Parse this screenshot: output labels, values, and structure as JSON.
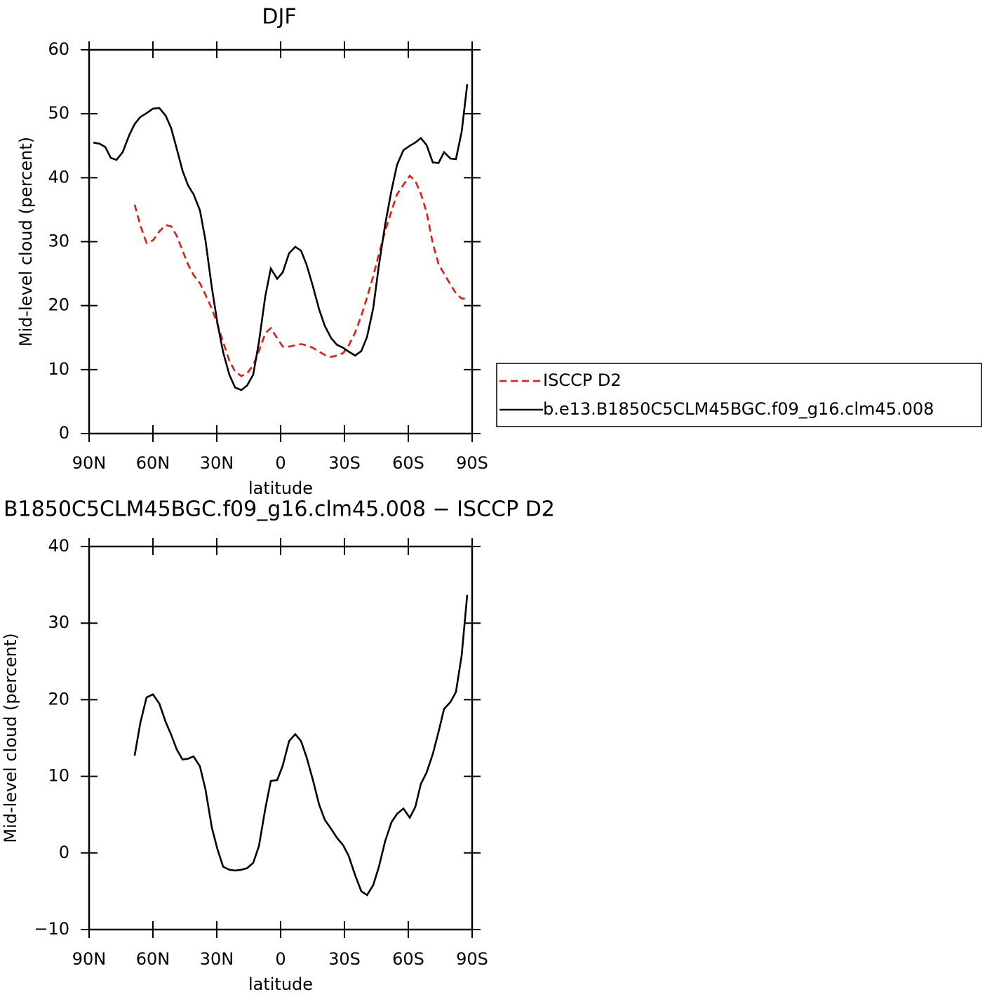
{
  "chart_data": [
    {
      "type": "line",
      "title": "DJF",
      "xlabel": "latitude",
      "ylabel": "Mid-level cloud (percent)",
      "x": [
        88,
        85,
        82.4,
        79.8,
        77.1,
        74.2,
        71.2,
        68.6,
        65.9,
        63,
        60,
        57,
        54,
        51.4,
        48.8,
        46.1,
        43.5,
        40.9,
        37.9,
        35.3,
        32.3,
        29.7,
        27,
        24.1,
        21.4,
        18.5,
        15.8,
        12.9,
        10.2,
        7.2,
        4.6,
        1.6,
        -1,
        -4,
        -6.9,
        -9.6,
        -12.2,
        -15.2,
        -18.1,
        -20.8,
        -23.8,
        -26.4,
        -29.4,
        -32,
        -35,
        -37.9,
        -40.6,
        -43.5,
        -46.2,
        -49.1,
        -52.1,
        -54.7,
        -57.7,
        -60.7,
        -63.3,
        -65.9,
        -68.6,
        -71.5,
        -74.2,
        -76.8,
        -79.8,
        -82.4,
        -85.1,
        -87.7
      ],
      "series": [
        {
          "name": "ISCCP D2",
          "color": "#e8190e",
          "linestyle": "dashed",
          "values": [
            null,
            null,
            null,
            null,
            null,
            null,
            null,
            35.8,
            32.5,
            29.8,
            30.2,
            31.6,
            32.6,
            32.4,
            30.9,
            28.6,
            26.4,
            24.8,
            23.5,
            21.7,
            19.5,
            17.1,
            14.3,
            11.4,
            9.7,
            9.0,
            9.4,
            10.7,
            12.9,
            15.7,
            16.5,
            14.9,
            13.6,
            13.6,
            13.8,
            14.0,
            13.8,
            13.4,
            12.8,
            12.3,
            12.0,
            12.2,
            12.6,
            13.8,
            15.8,
            18.4,
            21.3,
            24.6,
            28.1,
            31.6,
            34.8,
            37.4,
            38.9,
            40.3,
            39.5,
            37.5,
            34.6,
            29.7,
            26.5,
            25.0,
            23.3,
            21.9,
            21.1,
            21.1
          ]
        },
        {
          "name": "b.e13.B1850C5CLM45BGC.f09_g16.clm45.008",
          "color": "#000000",
          "linestyle": "solid",
          "values": [
            45.5,
            45.3,
            44.8,
            43.1,
            42.8,
            44.0,
            46.6,
            48.4,
            49.5,
            50.1,
            50.8,
            50.9,
            49.7,
            47.7,
            44.5,
            41.1,
            38.8,
            37.4,
            34.9,
            30.2,
            22.8,
            17.3,
            12.7,
            9.2,
            7.2,
            6.8,
            7.5,
            9.2,
            14.3,
            21.5,
            25.8,
            24.2,
            25.2,
            28.2,
            29.2,
            28.6,
            26.4,
            23.0,
            19.4,
            16.8,
            14.9,
            13.9,
            13.4,
            12.8,
            12.2,
            12.9,
            15.1,
            19.6,
            26.3,
            32.6,
            38.0,
            42.0,
            44.3,
            45.0,
            45.5,
            46.2,
            45.1,
            42.4,
            42.3,
            44.0,
            43.0,
            42.9,
            47.2,
            54.6
          ]
        }
      ],
      "xlim": [
        90,
        -90
      ],
      "xticks": [
        {
          "value": 90,
          "label": "90N"
        },
        {
          "value": 60,
          "label": "60N"
        },
        {
          "value": 30,
          "label": "30N"
        },
        0,
        {
          "value": -30,
          "label": "30S"
        },
        {
          "value": -60,
          "label": "60S"
        },
        {
          "value": -90,
          "label": "90S"
        }
      ],
      "ylim": [
        0,
        60
      ],
      "yticks": [
        0,
        10,
        20,
        30,
        40,
        50,
        60
      ],
      "legend": "right"
    },
    {
      "type": "line",
      "title": "B1850C5CLM45BGC.f09_g16.clm45.008 − ISCCP D2",
      "xlabel": "latitude",
      "ylabel": "Mid-level cloud (percent)",
      "x": [
        68.6,
        65.9,
        63,
        60,
        57,
        54,
        51.4,
        48.8,
        46.1,
        43.5,
        40.9,
        37.9,
        35.3,
        32.3,
        29.7,
        27,
        24.1,
        21.4,
        18.5,
        15.8,
        12.9,
        10.2,
        7.2,
        4.6,
        1.6,
        -1,
        -4,
        -6.9,
        -9.6,
        -12.2,
        -15.2,
        -18.1,
        -20.8,
        -23.8,
        -26.4,
        -29.4,
        -32,
        -35,
        -37.9,
        -40.6,
        -43.5,
        -46.2,
        -49.1,
        -52.1,
        -54.7,
        -57.7,
        -60.7,
        -63.3,
        -65.9,
        -68.6,
        -71.5,
        -74.2,
        -76.8,
        -79.8,
        -82.4,
        -85.1,
        -87.7
      ],
      "series": [
        {
          "color": "#000000",
          "linestyle": "solid",
          "values": [
            12.7,
            17.0,
            20.3,
            20.7,
            19.5,
            17.1,
            15.4,
            13.5,
            12.2,
            12.3,
            12.6,
            11.3,
            8.3,
            3.3,
            0.5,
            -1.8,
            -2.2,
            -2.3,
            -2.2,
            -2.0,
            -1.3,
            0.9,
            5.8,
            9.4,
            9.5,
            11.4,
            14.6,
            15.5,
            14.6,
            12.5,
            9.5,
            6.3,
            4.3,
            3.1,
            2.0,
            1.0,
            -0.4,
            -2.9,
            -5.0,
            -5.5,
            -4.2,
            -1.8,
            1.5,
            4.0,
            5.1,
            5.8,
            4.6,
            6.0,
            9.0,
            10.5,
            12.9,
            15.8,
            18.8,
            19.7,
            21.0,
            25.8,
            33.7
          ]
        }
      ],
      "xlim": [
        90,
        -90
      ],
      "xticks": [
        {
          "value": 90,
          "label": "90N"
        },
        {
          "value": 60,
          "label": "60N"
        },
        {
          "value": 30,
          "label": "30N"
        },
        0,
        {
          "value": -30,
          "label": "30S"
        },
        {
          "value": -60,
          "label": "60S"
        },
        {
          "value": -90,
          "label": "90S"
        }
      ],
      "ylim": [
        -10,
        40
      ],
      "yticks": [
        {
          "value": -10,
          "label": "−10"
        },
        0,
        10,
        20,
        30,
        40
      ]
    }
  ]
}
